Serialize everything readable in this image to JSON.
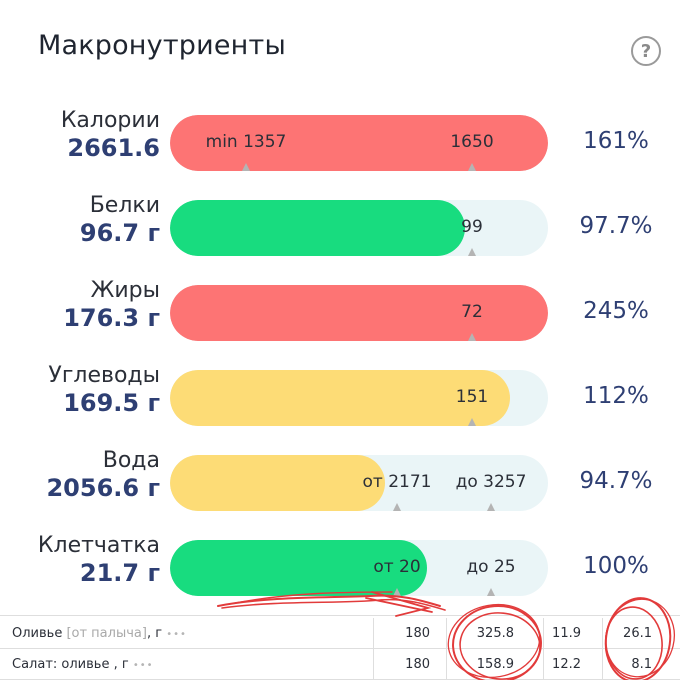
{
  "header": {
    "title": "Макронутриенты",
    "help_icon": "question-circle-icon",
    "help_glyph": "?"
  },
  "colors": {
    "over": "#fd7474",
    "ok": "#18dc7f",
    "under": "#fddc76",
    "track": "#eaf5f7",
    "accent": "#2e3f73",
    "annotation": "#e23b3b"
  },
  "nutrients": [
    {
      "name": "Калории",
      "amount": "2661.6",
      "percent": "161%",
      "status": "over",
      "fill_fraction": 1.0,
      "markers": [
        {
          "label": "min 1357",
          "pos": 0.2
        },
        {
          "label": "1650",
          "pos": 0.8
        }
      ]
    },
    {
      "name": "Белки",
      "amount": "96.7 г",
      "percent": "97.7%",
      "status": "ok",
      "fill_fraction": 0.78,
      "markers": [
        {
          "label": "99",
          "pos": 0.8
        }
      ]
    },
    {
      "name": "Жиры",
      "amount": "176.3 г",
      "percent": "245%",
      "status": "over",
      "fill_fraction": 1.0,
      "markers": [
        {
          "label": "72",
          "pos": 0.8
        }
      ]
    },
    {
      "name": "Углеводы",
      "amount": "169.5 г",
      "percent": "112%",
      "status": "under",
      "fill_fraction": 0.9,
      "markers": [
        {
          "label": "151",
          "pos": 0.8
        }
      ]
    },
    {
      "name": "Вода",
      "amount": "2056.6 г",
      "percent": "94.7%",
      "status": "under",
      "fill_fraction": 0.57,
      "markers": [
        {
          "label": "от 2171",
          "pos": 0.6
        },
        {
          "label": "до 3257",
          "pos": 0.85
        }
      ]
    },
    {
      "name": "Клетчатка",
      "amount": "21.7 г",
      "percent": "100%",
      "status": "ok",
      "fill_fraction": 0.68,
      "markers": [
        {
          "label": "от 20",
          "pos": 0.6
        },
        {
          "label": "до 25",
          "pos": 0.85
        }
      ]
    }
  ],
  "food_table": {
    "rows": [
      {
        "name": "Оливье",
        "hint": "[от палыча]",
        "unit": ", г",
        "more": "•••",
        "values": [
          "180",
          "325.8",
          "11.9",
          "26.1"
        ]
      },
      {
        "name": "Салат: оливье",
        "hint": "",
        "unit": ", г",
        "more": "•••",
        "values": [
          "180",
          "158.9",
          "12.2",
          "8.1"
        ]
      }
    ]
  }
}
